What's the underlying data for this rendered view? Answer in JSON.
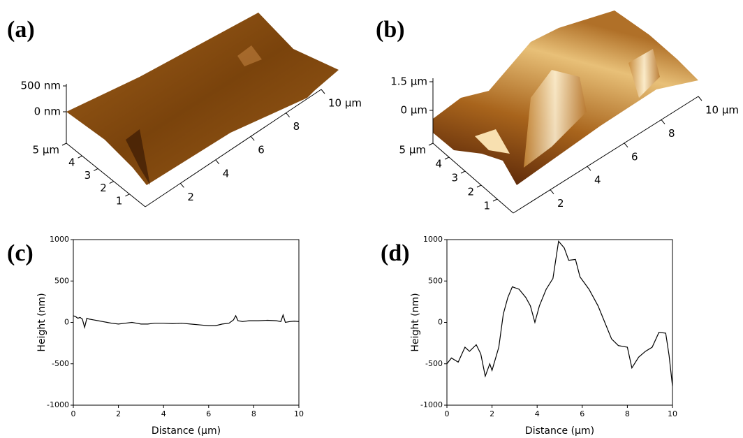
{
  "chart_data": [
    {
      "type": "surface3d",
      "panel": "(a)",
      "xlim": [
        0,
        10
      ],
      "ylim": [
        0,
        5
      ],
      "zlim": [
        0,
        500
      ],
      "xticks": [
        2,
        4,
        6,
        8,
        {
          "value": 10,
          "label": "10 μm"
        }
      ],
      "yticks": [
        1,
        2,
        3,
        4,
        {
          "value": 5,
          "label": "5 μm"
        }
      ],
      "zticks": [
        {
          "value": 0,
          "label": "0 nm"
        },
        {
          "value": 500,
          "label": "500 nm"
        }
      ]
    },
    {
      "type": "surface3d",
      "panel": "(b)",
      "xlim": [
        0,
        10
      ],
      "ylim": [
        0,
        5
      ],
      "zlim": [
        0,
        1.5
      ],
      "xticks": [
        2,
        4,
        6,
        8,
        {
          "value": 10,
          "label": "10 μm"
        }
      ],
      "yticks": [
        1,
        2,
        3,
        4,
        {
          "value": 5,
          "label": "5 μm"
        }
      ],
      "zticks": [
        {
          "value": 0,
          "label": "0 μm"
        },
        {
          "value": 1.5,
          "label": "1.5 μm"
        }
      ]
    },
    {
      "type": "line",
      "panel": "(c)",
      "xlabel": "Distance (μm)",
      "ylabel": "Height (nm)",
      "color": "#000000",
      "xlim": [
        0,
        10
      ],
      "ylim": [
        -1000,
        1000
      ],
      "xticks": [
        0,
        2,
        4,
        6,
        8,
        10
      ],
      "yticks": [
        -1000,
        -500,
        0,
        500,
        1000
      ],
      "x": [
        0,
        0.1,
        0.2,
        0.3,
        0.4,
        0.5,
        0.6,
        0.7,
        0.9,
        1.1,
        1.3,
        1.5,
        1.7,
        2.0,
        2.3,
        2.6,
        2.8,
        3.0,
        3.3,
        3.6,
        4.0,
        4.4,
        4.8,
        5.2,
        5.6,
        6.0,
        6.3,
        6.6,
        6.9,
        7.1,
        7.2,
        7.3,
        7.5,
        7.8,
        8.2,
        8.6,
        9.0,
        9.2,
        9.3,
        9.4,
        9.6,
        9.8,
        10
      ],
      "values": [
        80,
        70,
        50,
        60,
        40,
        -60,
        50,
        40,
        30,
        20,
        10,
        0,
        -10,
        -20,
        -10,
        0,
        -10,
        -20,
        -20,
        -10,
        -10,
        -15,
        -10,
        -20,
        -30,
        -40,
        -40,
        -20,
        -10,
        30,
        80,
        20,
        10,
        20,
        20,
        25,
        20,
        10,
        90,
        0,
        10,
        15,
        10
      ]
    },
    {
      "type": "line",
      "panel": "(d)",
      "xlabel": "Distance (μm)",
      "ylabel": "Height (nm)",
      "color": "#000000",
      "xlim": [
        0,
        10
      ],
      "ylim": [
        -1000,
        1000
      ],
      "xticks": [
        0,
        2,
        4,
        6,
        8,
        10
      ],
      "yticks": [
        -1000,
        -500,
        0,
        500,
        1000
      ],
      "x": [
        0,
        0.2,
        0.5,
        0.8,
        1.0,
        1.3,
        1.5,
        1.7,
        1.9,
        2.0,
        2.3,
        2.5,
        2.7,
        2.9,
        3.2,
        3.5,
        3.7,
        3.9,
        4.1,
        4.4,
        4.7,
        4.95,
        5.2,
        5.4,
        5.7,
        5.9,
        6.3,
        6.7,
        7.0,
        7.3,
        7.6,
        8.0,
        8.2,
        8.5,
        8.8,
        9.1,
        9.4,
        9.7,
        9.85,
        10
      ],
      "values": [
        -500,
        -430,
        -480,
        -300,
        -350,
        -270,
        -380,
        -650,
        -500,
        -580,
        -300,
        100,
        300,
        430,
        400,
        300,
        200,
        0,
        200,
        400,
        530,
        980,
        900,
        750,
        760,
        550,
        400,
        200,
        0,
        -200,
        -280,
        -300,
        -550,
        -420,
        -350,
        -300,
        -120,
        -130,
        -400,
        -770
      ]
    }
  ]
}
